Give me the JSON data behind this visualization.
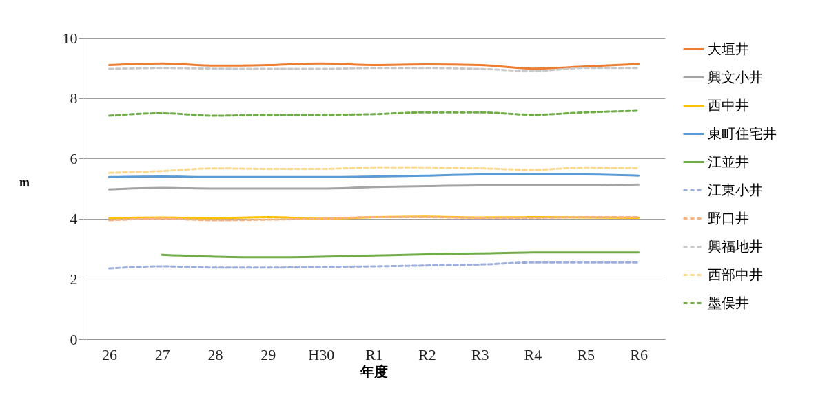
{
  "chart_data": {
    "type": "line",
    "xlabel": "年度",
    "ylabel": "m",
    "categories": [
      "26",
      "27",
      "28",
      "29",
      "H30",
      "R1",
      "R2",
      "R3",
      "R4",
      "R5",
      "R6"
    ],
    "ylim": [
      0,
      10
    ],
    "yticks": [
      0,
      2,
      4,
      6,
      8,
      10
    ],
    "grid": "y",
    "legend": "right",
    "series": [
      {
        "name": "大垣井",
        "color": "#ed7d31",
        "line_style": "solid",
        "values": [
          9.1,
          9.15,
          9.08,
          9.1,
          9.15,
          9.1,
          9.12,
          9.1,
          8.98,
          9.05,
          9.13
        ]
      },
      {
        "name": "興文小井",
        "color": "#a5a5a5",
        "line_style": "solid",
        "values": [
          4.97,
          5.02,
          5.0,
          5.0,
          5.0,
          5.05,
          5.08,
          5.1,
          5.1,
          5.1,
          5.13
        ]
      },
      {
        "name": "西中井",
        "color": "#ffc000",
        "line_style": "solid",
        "values": [
          4.02,
          4.04,
          4.02,
          4.05,
          4.0,
          4.05,
          4.07,
          4.04,
          4.05,
          4.04,
          4.03
        ]
      },
      {
        "name": "東町住宅井",
        "color": "#5b9bd5",
        "line_style": "solid",
        "values": [
          5.38,
          5.4,
          5.38,
          5.38,
          5.38,
          5.4,
          5.43,
          5.47,
          5.47,
          5.47,
          5.43
        ]
      },
      {
        "name": "江並井",
        "color": "#70ad47",
        "line_style": "solid",
        "values": [
          null,
          2.8,
          2.74,
          2.72,
          2.74,
          2.78,
          2.82,
          2.85,
          2.88,
          2.88,
          2.88
        ]
      },
      {
        "name": "江東小井",
        "color": "#9dafe0",
        "line_style": "dashed",
        "values": [
          2.35,
          2.42,
          2.38,
          2.38,
          2.4,
          2.42,
          2.45,
          2.48,
          2.55,
          2.55,
          2.55
        ]
      },
      {
        "name": "野口井",
        "color": "#f4b183",
        "line_style": "dashed",
        "values": [
          3.95,
          4.0,
          3.95,
          3.97,
          4.0,
          4.05,
          4.05,
          4.03,
          4.03,
          4.05,
          4.05
        ]
      },
      {
        "name": "興福地井",
        "color": "#c9c9c9",
        "line_style": "dashed",
        "values": [
          8.97,
          9.0,
          8.98,
          8.97,
          8.97,
          9.0,
          9.0,
          8.97,
          8.9,
          9.0,
          9.0
        ]
      },
      {
        "name": "西部中井",
        "color": "#ffd98a",
        "line_style": "dashed",
        "values": [
          5.52,
          5.58,
          5.67,
          5.65,
          5.65,
          5.7,
          5.7,
          5.67,
          5.62,
          5.7,
          5.67
        ]
      },
      {
        "name": "墨俣井",
        "color": "#70ad47",
        "line_style": "dashed",
        "values": [
          7.42,
          7.5,
          7.42,
          7.45,
          7.45,
          7.47,
          7.53,
          7.53,
          7.45,
          7.53,
          7.58
        ]
      }
    ]
  }
}
